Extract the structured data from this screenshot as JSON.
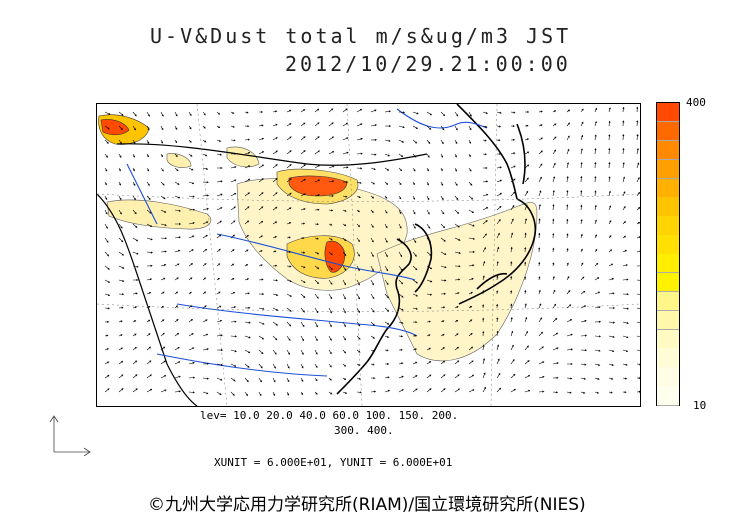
{
  "title": {
    "line1": "U-V&Dust total m/s&ug/m3 JST",
    "line2": "2012/10/29.21:00:00"
  },
  "colorbar": {
    "max_label": "400",
    "min_label": "10",
    "colors": [
      "#ff4a00",
      "#ff6a00",
      "#ff8a00",
      "#ffa000",
      "#ffb000",
      "#ffc400",
      "#ffd400",
      "#ffe000",
      "#ffee00",
      "#fff200",
      "#fff68a",
      "#fff8aa",
      "#fffac2",
      "#fffcd6",
      "#fffde6",
      "#ffffee"
    ]
  },
  "contour_levels": {
    "line1": "lev= 10.0 20.0 40.0 60.0 100. 150. 200.",
    "line2": "300. 400."
  },
  "units": {
    "text": "XUNIT = 6.000E+01, YUNIT = 6.000E+01"
  },
  "footer": {
    "copyright": "©九州大学応用力学研究所(RIAM)/国立環境研究所(NIES)"
  }
}
